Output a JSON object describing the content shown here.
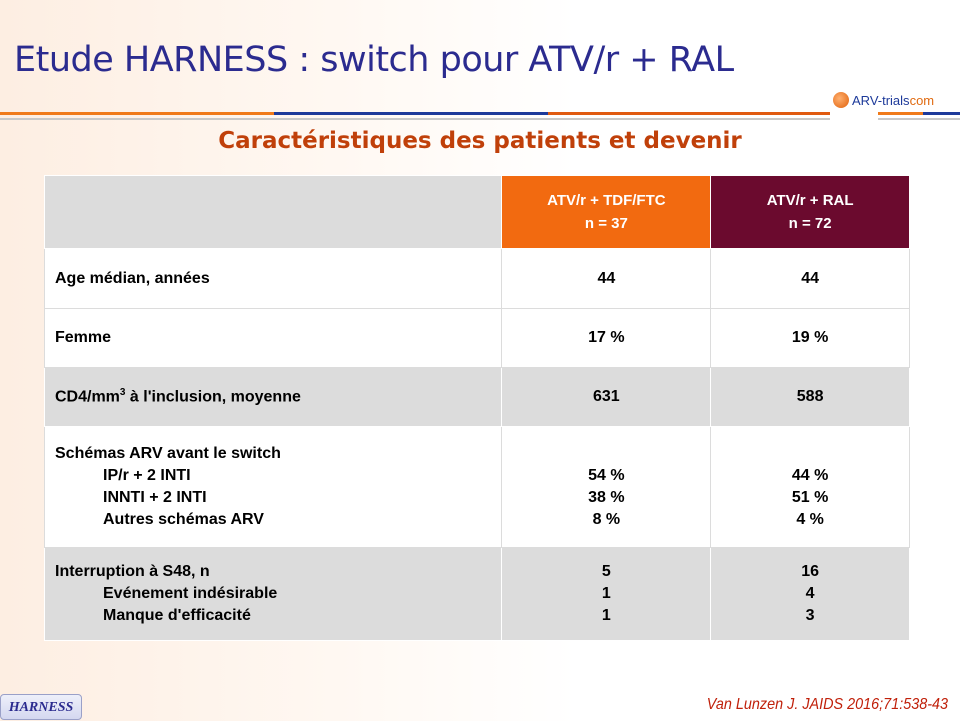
{
  "title": "Etude HARNESS : switch pour ATV/r + RAL",
  "logo": {
    "text": "ARV-trials",
    "suffix": "com"
  },
  "subtitle": "Caractéristiques des patients et devenir",
  "table": {
    "col1": {
      "line1": "ATV/r + TDF/FTC",
      "line2": "n = 37"
    },
    "col2": {
      "line1": "ATV/r + RAL",
      "line2": "n = 72"
    },
    "rows": [
      {
        "label": "Age médian, années",
        "v1": "44",
        "v2": "44"
      },
      {
        "label": "Femme",
        "v1": "17 %",
        "v2": "19 %"
      },
      {
        "label_pre": "CD4/mm",
        "label_sup": "3",
        "label_post": " à l'inclusion, moyenne",
        "v1": "631",
        "v2": "588"
      },
      {
        "label": "Schémas ARV avant le switch",
        "subs": [
          {
            "label": "IP/r + 2 INTI",
            "v1": "54 %",
            "v2": "44 %"
          },
          {
            "label": "INNTI + 2 INTI",
            "v1": "38 %",
            "v2": "51 %"
          },
          {
            "label": "Autres schémas ARV",
            "v1": "8 %",
            "v2": "4 %"
          }
        ]
      },
      {
        "label": "Interruption à S48, n",
        "v1": "5",
        "v2": "16",
        "subs": [
          {
            "label": "Evénement indésirable",
            "v1": "1",
            "v2": "4"
          },
          {
            "label": "Manque d'efficacité",
            "v1": "1",
            "v2": "3"
          }
        ]
      }
    ]
  },
  "badge": "HARNESS",
  "reference": "Van Lunzen J. JAIDS 2016;71:538-43",
  "colors": {
    "orange": "#f26a10",
    "maroon": "#6b0a2e",
    "title": "#2b2b8f",
    "subtitle": "#c0400a"
  }
}
